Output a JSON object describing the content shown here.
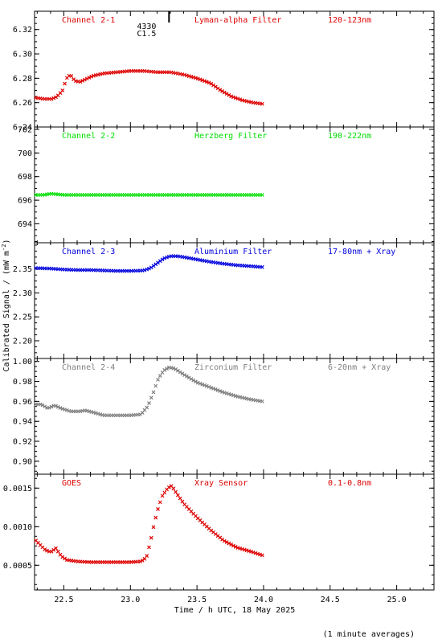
{
  "figure": {
    "xlabel": "Time / h UTC, 18 May 2025",
    "ylabel": "Calibrated Signal / (mW m",
    "ylabel_superscript": "-2",
    "ylabel_close": ")",
    "footnote": "(1 minute averages)",
    "event_marker": {
      "label_top": "4330",
      "label_bottom": "C1.5",
      "x": 23.29
    }
  },
  "chart_data": [
    {
      "type": "scatter",
      "title": "Channel 2-1",
      "filter": "Lyman-alpha Filter",
      "band": "120-123nm",
      "color": "#dd0000",
      "xlim": [
        22.28,
        25.28
      ],
      "ylim": [
        6.24,
        6.335
      ],
      "yticks": [
        6.24,
        6.26,
        6.28,
        6.3,
        6.32
      ],
      "ytick_labels": [
        "6.24",
        "6.26",
        "6.28",
        "6.30",
        "6.32"
      ],
      "x": [
        22.29,
        22.35,
        22.41,
        22.45,
        22.49,
        22.52,
        22.55,
        22.58,
        22.62,
        22.66,
        22.72,
        22.8,
        22.9,
        23.0,
        23.1,
        23.2,
        23.3,
        23.4,
        23.5,
        23.6,
        23.68,
        23.76,
        23.84,
        23.92,
        23.99
      ],
      "y": [
        6.264,
        6.263,
        6.263,
        6.265,
        6.27,
        6.28,
        6.283,
        6.278,
        6.277,
        6.279,
        6.282,
        6.284,
        6.285,
        6.286,
        6.286,
        6.285,
        6.285,
        6.283,
        6.28,
        6.276,
        6.27,
        6.265,
        6.262,
        6.26,
        6.259
      ]
    },
    {
      "type": "scatter",
      "title": "Channel 2-2",
      "filter": "Herzberg Filter",
      "band": "190-222nm",
      "color": "#00dd00",
      "xlim": [
        22.28,
        25.28
      ],
      "ylim": [
        692.4,
        702.2
      ],
      "yticks": [
        694,
        696,
        698,
        700,
        702
      ],
      "ytick_labels": [
        "694",
        "696",
        "698",
        "700",
        "702"
      ],
      "x": [
        22.29,
        22.35,
        22.4,
        22.5,
        22.6,
        22.7,
        22.8,
        22.9,
        23.0,
        23.1,
        23.2,
        23.3,
        23.4,
        23.5,
        23.6,
        23.7,
        23.8,
        23.9,
        23.99
      ],
      "y": [
        696.45,
        696.45,
        696.55,
        696.45,
        696.45,
        696.45,
        696.45,
        696.45,
        696.45,
        696.45,
        696.45,
        696.45,
        696.45,
        696.45,
        696.45,
        696.45,
        696.45,
        696.45,
        696.45
      ]
    },
    {
      "type": "scatter",
      "title": "Channel 2-3",
      "filter": "Aluminium Filter",
      "band": "17-80nm + Xray",
      "color": "#0000dd",
      "xlim": [
        22.28,
        25.28
      ],
      "ylim": [
        2.163,
        2.405
      ],
      "yticks": [
        2.2,
        2.25,
        2.3,
        2.35
      ],
      "ytick_labels": [
        "2.20",
        "2.25",
        "2.30",
        "2.35"
      ],
      "x": [
        22.29,
        22.4,
        22.5,
        22.6,
        22.7,
        22.8,
        22.9,
        23.0,
        23.1,
        23.15,
        23.2,
        23.25,
        23.3,
        23.35,
        23.4,
        23.5,
        23.6,
        23.7,
        23.8,
        23.9,
        23.99
      ],
      "y": [
        2.352,
        2.351,
        2.349,
        2.348,
        2.348,
        2.347,
        2.346,
        2.346,
        2.347,
        2.352,
        2.362,
        2.372,
        2.377,
        2.377,
        2.375,
        2.37,
        2.365,
        2.361,
        2.358,
        2.356,
        2.354
      ]
    },
    {
      "type": "scatter",
      "title": "Channel 2-4",
      "filter": "Zirconium Filter",
      "band": "6-20nm + Xray",
      "color": "#808080",
      "xlim": [
        22.28,
        25.28
      ],
      "ylim": [
        0.887,
        1.003
      ],
      "yticks": [
        0.9,
        0.92,
        0.94,
        0.96,
        0.98,
        1.0
      ],
      "ytick_labels": [
        "0.90",
        "0.92",
        "0.94",
        "0.96",
        "0.98",
        "1.00"
      ],
      "x": [
        22.29,
        22.33,
        22.38,
        22.43,
        22.48,
        22.55,
        22.62,
        22.66,
        22.72,
        22.8,
        22.9,
        23.0,
        23.08,
        23.13,
        23.17,
        23.21,
        23.25,
        23.29,
        23.33,
        23.4,
        23.5,
        23.6,
        23.7,
        23.8,
        23.9,
        23.99
      ],
      "y": [
        0.957,
        0.957,
        0.953,
        0.956,
        0.953,
        0.95,
        0.95,
        0.951,
        0.949,
        0.946,
        0.946,
        0.946,
        0.947,
        0.955,
        0.968,
        0.983,
        0.991,
        0.994,
        0.993,
        0.987,
        0.979,
        0.974,
        0.969,
        0.965,
        0.962,
        0.96
      ]
    },
    {
      "type": "scatter",
      "title": "GOES",
      "filter": "Xray Sensor",
      "band": "0.1-0.8nm",
      "color": "#dd0000",
      "xlim": [
        22.28,
        25.28
      ],
      "ylim": [
        0.00018,
        0.00168
      ],
      "yticks": [
        0.0005,
        0.001,
        0.0015
      ],
      "ytick_labels": [
        "0.0005",
        "0.0010",
        "0.0015"
      ],
      "x": [
        22.29,
        22.33,
        22.36,
        22.4,
        22.44,
        22.48,
        22.52,
        22.6,
        22.7,
        22.8,
        22.9,
        23.0,
        23.08,
        23.12,
        23.15,
        23.18,
        23.21,
        23.24,
        23.28,
        23.31,
        23.34,
        23.4,
        23.5,
        23.6,
        23.7,
        23.8,
        23.9,
        23.99
      ],
      "y": [
        0.00082,
        0.00075,
        0.0007,
        0.00067,
        0.00072,
        0.00062,
        0.00057,
        0.00055,
        0.00054,
        0.00054,
        0.00054,
        0.00054,
        0.00055,
        0.0006,
        0.0008,
        0.00105,
        0.00125,
        0.0014,
        0.0015,
        0.00153,
        0.00145,
        0.0013,
        0.00112,
        0.00096,
        0.00082,
        0.00073,
        0.00068,
        0.00063
      ]
    }
  ],
  "x_axis": {
    "ticks": [
      22.5,
      23.0,
      23.5,
      24.0,
      24.5,
      25.0
    ],
    "tick_labels": [
      "22.5",
      "23.0",
      "23.5",
      "24.0",
      "24.5",
      "25.0"
    ]
  }
}
